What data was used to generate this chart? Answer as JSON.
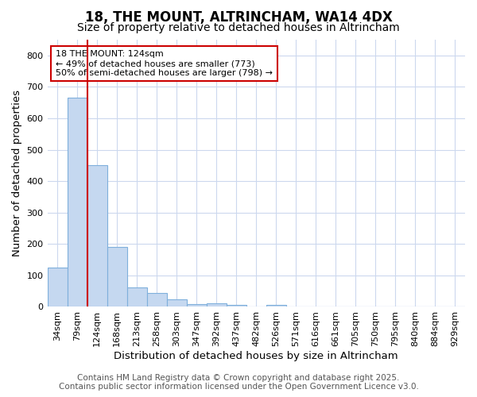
{
  "title_line1": "18, THE MOUNT, ALTRINCHAM, WA14 4DX",
  "title_line2": "Size of property relative to detached houses in Altrincham",
  "xlabel": "Distribution of detached houses by size in Altrincham",
  "ylabel": "Number of detached properties",
  "categories": [
    "34sqm",
    "79sqm",
    "124sqm",
    "168sqm",
    "213sqm",
    "258sqm",
    "303sqm",
    "347sqm",
    "392sqm",
    "437sqm",
    "482sqm",
    "526sqm",
    "571sqm",
    "616sqm",
    "661sqm",
    "705sqm",
    "750sqm",
    "795sqm",
    "840sqm",
    "884sqm",
    "929sqm"
  ],
  "values": [
    125,
    665,
    450,
    190,
    62,
    45,
    25,
    10,
    12,
    5,
    0,
    5,
    0,
    0,
    0,
    0,
    0,
    0,
    0,
    0,
    0
  ],
  "bar_color": "#c5d8f0",
  "bar_edge_color": "#7fb0dc",
  "red_line_x": 2,
  "annotation_text": "18 THE MOUNT: 124sqm\n← 49% of detached houses are smaller (773)\n50% of semi-detached houses are larger (798) →",
  "annotation_box_color": "#ffffff",
  "annotation_border_color": "#cc0000",
  "footer_line1": "Contains HM Land Registry data © Crown copyright and database right 2025.",
  "footer_line2": "Contains public sector information licensed under the Open Government Licence v3.0.",
  "ylim": [
    0,
    850
  ],
  "yticks": [
    0,
    100,
    200,
    300,
    400,
    500,
    600,
    700,
    800
  ],
  "bg_color": "#ffffff",
  "grid_color": "#ccd8ee",
  "title_fontsize": 12,
  "subtitle_fontsize": 10,
  "axis_fontsize": 9.5,
  "tick_fontsize": 8,
  "footer_fontsize": 7.5
}
